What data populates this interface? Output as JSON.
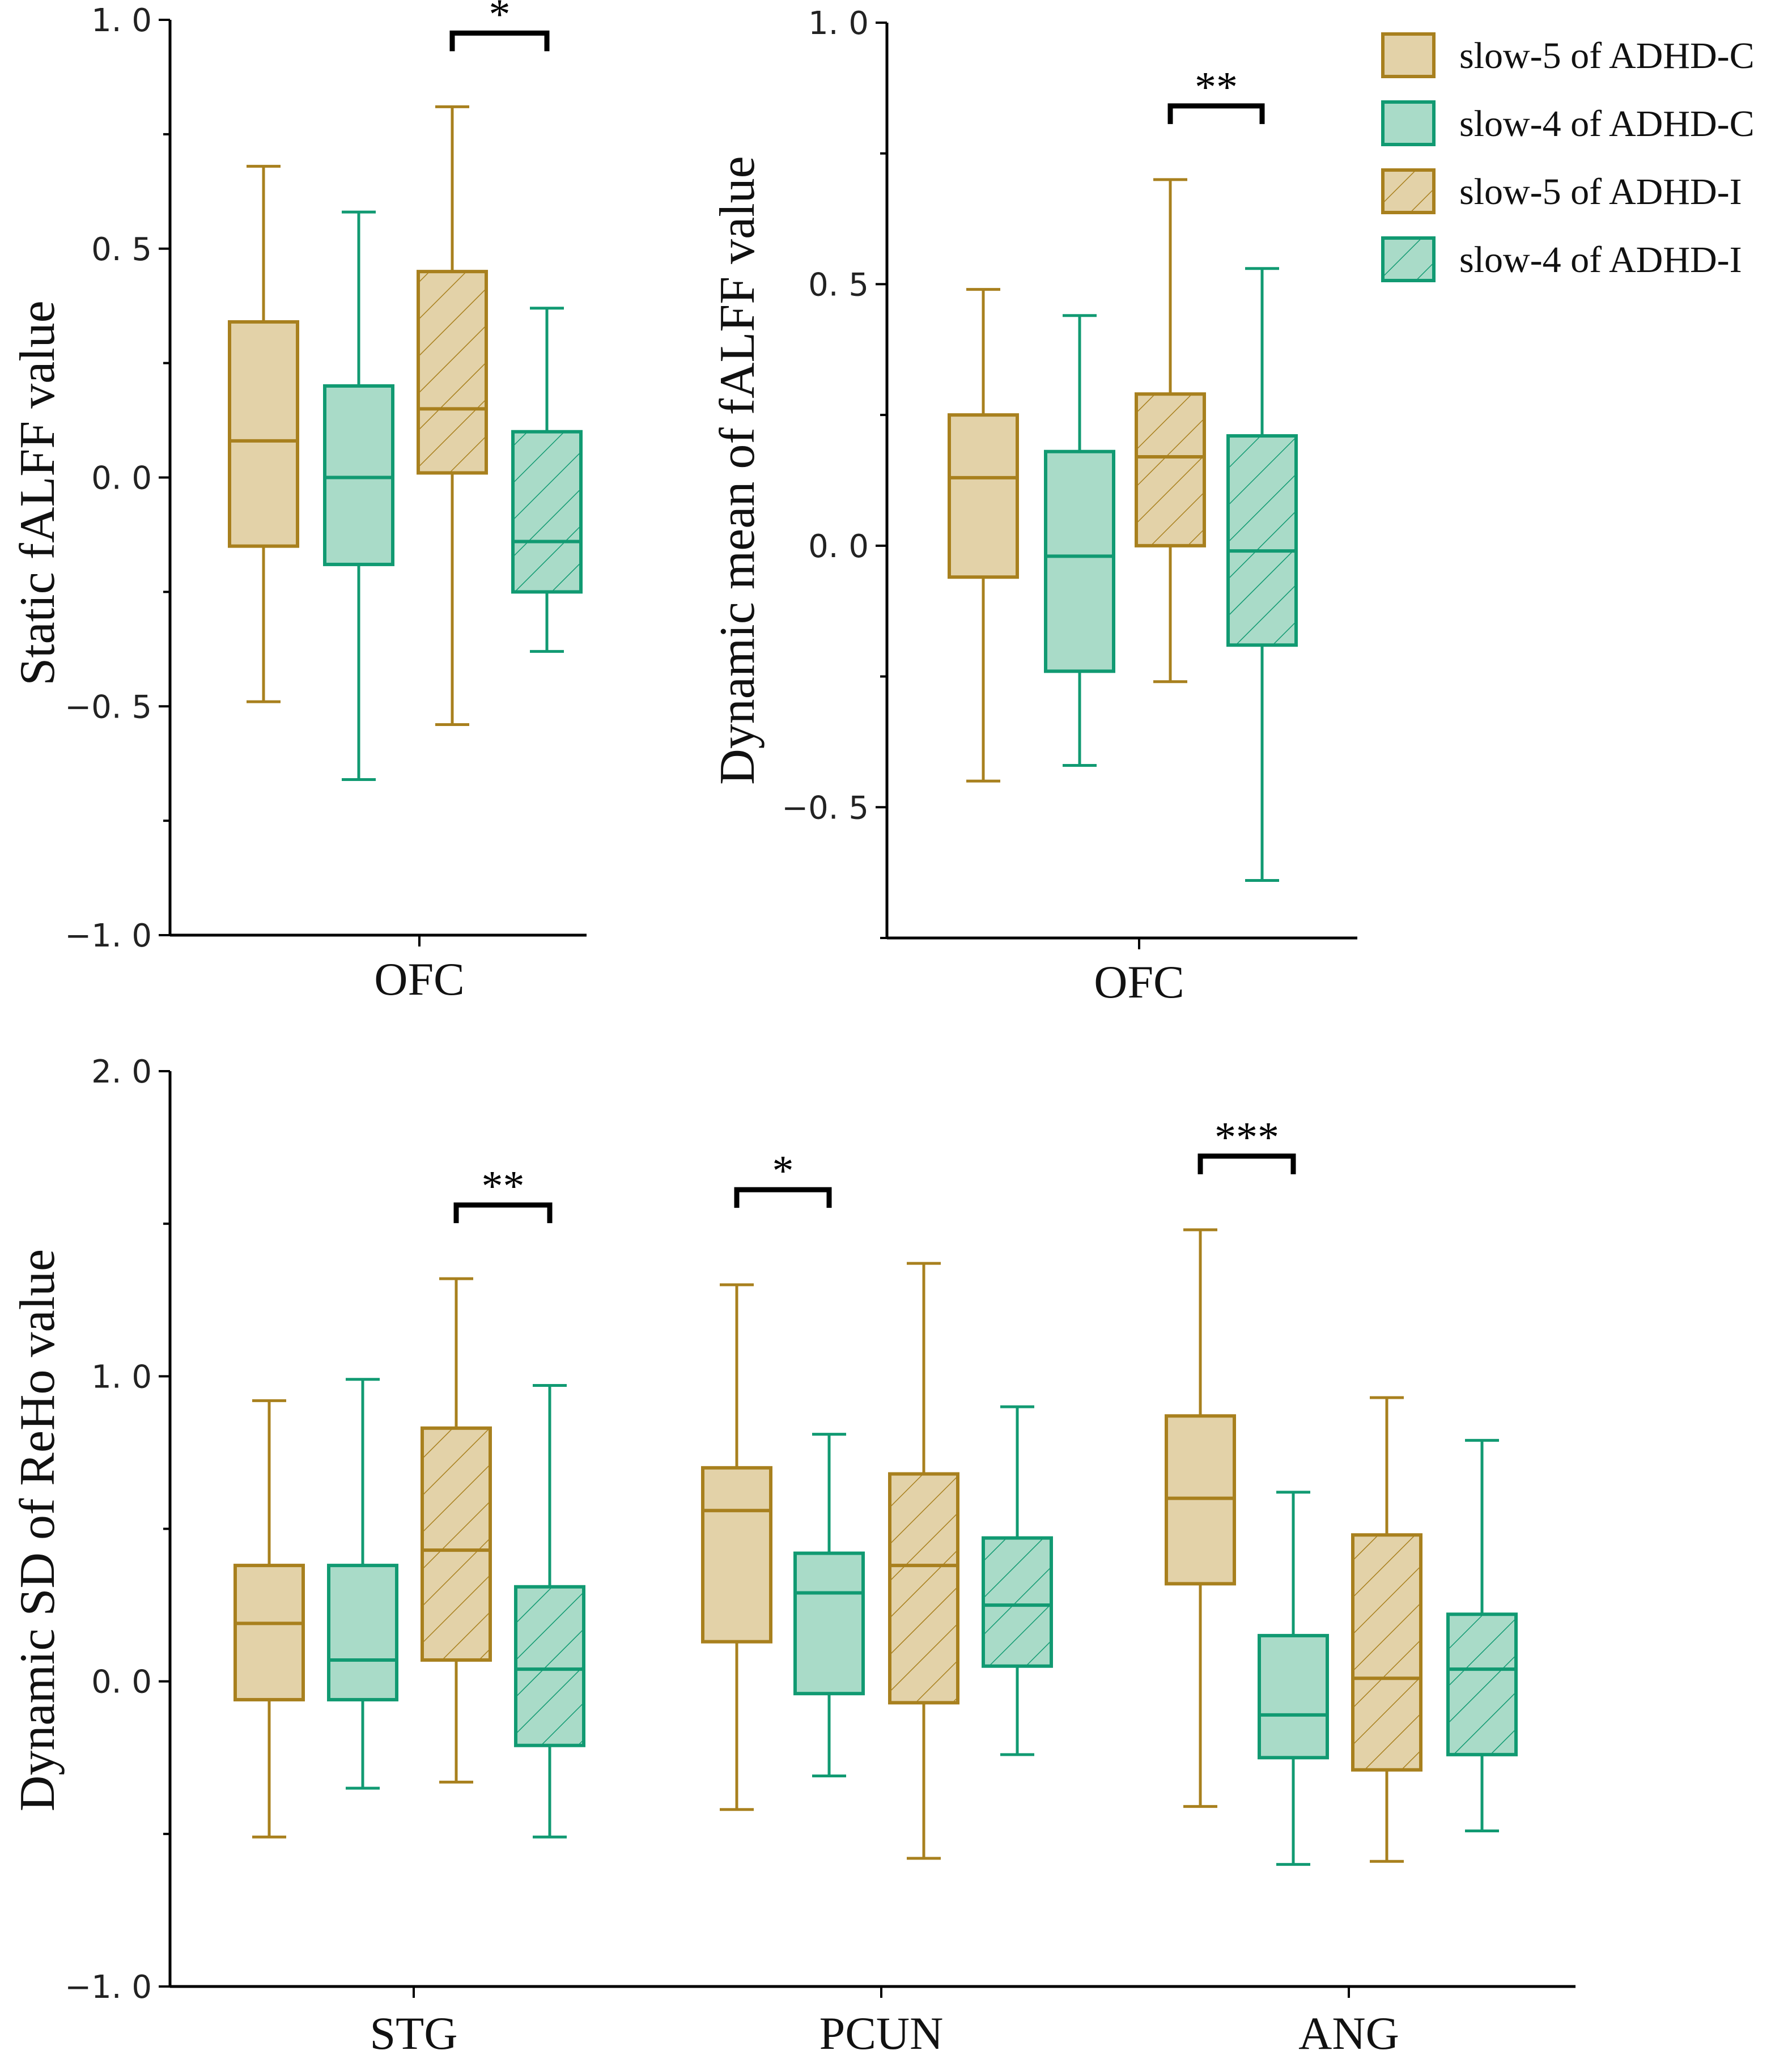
{
  "colors": {
    "slow5_stroke": "#A8801E",
    "slow5_fill": "#E3D2A8",
    "slow4_stroke": "#119A72",
    "slow4_fill": "#A9DBC8",
    "axis": "#000000",
    "bracket": "#000000"
  },
  "legend": {
    "items": [
      {
        "label": "slow-5 of ADHD-C",
        "series": "slow5",
        "hatched": false
      },
      {
        "label": "slow-4 of ADHD-C",
        "series": "slow4",
        "hatched": false
      },
      {
        "label": "slow-5 of ADHD-I",
        "series": "slow5",
        "hatched": true
      },
      {
        "label": "slow-4 of ADHD-I",
        "series": "slow4",
        "hatched": true
      }
    ]
  },
  "chart_data": [
    {
      "id": "static-falff",
      "type": "box",
      "ylabel": "Static fALFF value",
      "ylim": [
        -1.0,
        1.0
      ],
      "yticks": [
        {
          "value": 1.0,
          "label": "1. 0"
        },
        {
          "value": 0.5,
          "label": "0. 5"
        },
        {
          "value": 0.0,
          "label": "0. 0"
        },
        {
          "value": -0.5,
          "label": "−0. 5"
        },
        {
          "value": -1.0,
          "label": "−1. 0"
        }
      ],
      "categories": [
        {
          "label": "OFC",
          "boxes": [
            {
              "series": "slow5",
              "group": "ADHD-C",
              "hatched": false,
              "min": -0.49,
              "q1": -0.15,
              "median": 0.08,
              "q3": 0.34,
              "max": 0.68
            },
            {
              "series": "slow4",
              "group": "ADHD-C",
              "hatched": false,
              "min": -0.66,
              "q1": -0.19,
              "median": 0.0,
              "q3": 0.2,
              "max": 0.58
            },
            {
              "series": "slow5",
              "group": "ADHD-I",
              "hatched": true,
              "min": -0.54,
              "q1": 0.01,
              "median": 0.15,
              "q3": 0.45,
              "max": 0.81
            },
            {
              "series": "slow4",
              "group": "ADHD-I",
              "hatched": true,
              "min": -0.38,
              "q1": -0.25,
              "median": -0.14,
              "q3": 0.1,
              "max": 0.37
            }
          ],
          "significance": [
            {
              "from": 2,
              "to": 3,
              "label": "*"
            }
          ]
        }
      ]
    },
    {
      "id": "dynamic-mean-falff",
      "type": "box",
      "ylabel": "Dynamic mean of fALFF value",
      "ylim": [
        -0.75,
        1.0
      ],
      "yticks": [
        {
          "value": 1.0,
          "label": "1. 0"
        },
        {
          "value": 0.5,
          "label": "0. 5"
        },
        {
          "value": 0.0,
          "label": "0. 0"
        },
        {
          "value": -0.5,
          "label": "−0. 5"
        }
      ],
      "categories": [
        {
          "label": "OFC",
          "boxes": [
            {
              "series": "slow5",
              "group": "ADHD-C",
              "hatched": false,
              "min": -0.45,
              "q1": -0.06,
              "median": 0.13,
              "q3": 0.25,
              "max": 0.49
            },
            {
              "series": "slow4",
              "group": "ADHD-C",
              "hatched": false,
              "min": -0.42,
              "q1": -0.24,
              "median": -0.02,
              "q3": 0.18,
              "max": 0.44
            },
            {
              "series": "slow5",
              "group": "ADHD-I",
              "hatched": true,
              "min": -0.26,
              "q1": 0.0,
              "median": 0.17,
              "q3": 0.29,
              "max": 0.7
            },
            {
              "series": "slow4",
              "group": "ADHD-I",
              "hatched": true,
              "min": -0.64,
              "q1": -0.19,
              "median": -0.01,
              "q3": 0.21,
              "max": 0.53
            }
          ],
          "significance": [
            {
              "from": 2,
              "to": 3,
              "label": "**"
            }
          ]
        }
      ]
    },
    {
      "id": "dynamic-sd-reho",
      "type": "box",
      "ylabel": "Dynamic SD of ReHo value",
      "ylim": [
        -1.0,
        2.0
      ],
      "yticks": [
        {
          "value": 2.0,
          "label": "2. 0"
        },
        {
          "value": 1.0,
          "label": "1. 0"
        },
        {
          "value": 0.0,
          "label": "0. 0"
        },
        {
          "value": -1.0,
          "label": "−1. 0"
        }
      ],
      "categories": [
        {
          "label": "STG",
          "boxes": [
            {
              "series": "slow5",
              "group": "ADHD-C",
              "hatched": false,
              "min": -0.51,
              "q1": -0.06,
              "median": 0.19,
              "q3": 0.38,
              "max": 0.92
            },
            {
              "series": "slow4",
              "group": "ADHD-C",
              "hatched": false,
              "min": -0.35,
              "q1": -0.06,
              "median": 0.07,
              "q3": 0.38,
              "max": 0.99
            },
            {
              "series": "slow5",
              "group": "ADHD-I",
              "hatched": true,
              "min": -0.33,
              "q1": 0.07,
              "median": 0.43,
              "q3": 0.83,
              "max": 1.32
            },
            {
              "series": "slow4",
              "group": "ADHD-I",
              "hatched": true,
              "min": -0.51,
              "q1": -0.21,
              "median": 0.04,
              "q3": 0.31,
              "max": 0.97
            }
          ],
          "significance": [
            {
              "from": 2,
              "to": 3,
              "label": "**"
            }
          ]
        },
        {
          "label": "PCUN",
          "boxes": [
            {
              "series": "slow5",
              "group": "ADHD-C",
              "hatched": false,
              "min": -0.42,
              "q1": 0.13,
              "median": 0.56,
              "q3": 0.7,
              "max": 1.3
            },
            {
              "series": "slow4",
              "group": "ADHD-C",
              "hatched": false,
              "min": -0.31,
              "q1": -0.04,
              "median": 0.29,
              "q3": 0.42,
              "max": 0.81
            },
            {
              "series": "slow5",
              "group": "ADHD-I",
              "hatched": true,
              "min": -0.58,
              "q1": -0.07,
              "median": 0.38,
              "q3": 0.68,
              "max": 1.37
            },
            {
              "series": "slow4",
              "group": "ADHD-I",
              "hatched": true,
              "min": -0.24,
              "q1": 0.05,
              "median": 0.25,
              "q3": 0.47,
              "max": 0.9
            }
          ],
          "significance": [
            {
              "from": 0,
              "to": 1,
              "label": "*"
            }
          ]
        },
        {
          "label": "ANG",
          "boxes": [
            {
              "series": "slow5",
              "group": "ADHD-C",
              "hatched": false,
              "min": -0.41,
              "q1": 0.32,
              "median": 0.6,
              "q3": 0.87,
              "max": 1.48
            },
            {
              "series": "slow4",
              "group": "ADHD-C",
              "hatched": false,
              "min": -0.6,
              "q1": -0.25,
              "median": -0.11,
              "q3": 0.15,
              "max": 0.62
            },
            {
              "series": "slow5",
              "group": "ADHD-I",
              "hatched": true,
              "min": -0.59,
              "q1": -0.29,
              "median": 0.01,
              "q3": 0.48,
              "max": 0.93
            },
            {
              "series": "slow4",
              "group": "ADHD-I",
              "hatched": true,
              "min": -0.49,
              "q1": -0.24,
              "median": 0.04,
              "q3": 0.22,
              "max": 0.79
            }
          ],
          "significance": [
            {
              "from": 0,
              "to": 1,
              "label": "***"
            }
          ]
        }
      ]
    }
  ]
}
